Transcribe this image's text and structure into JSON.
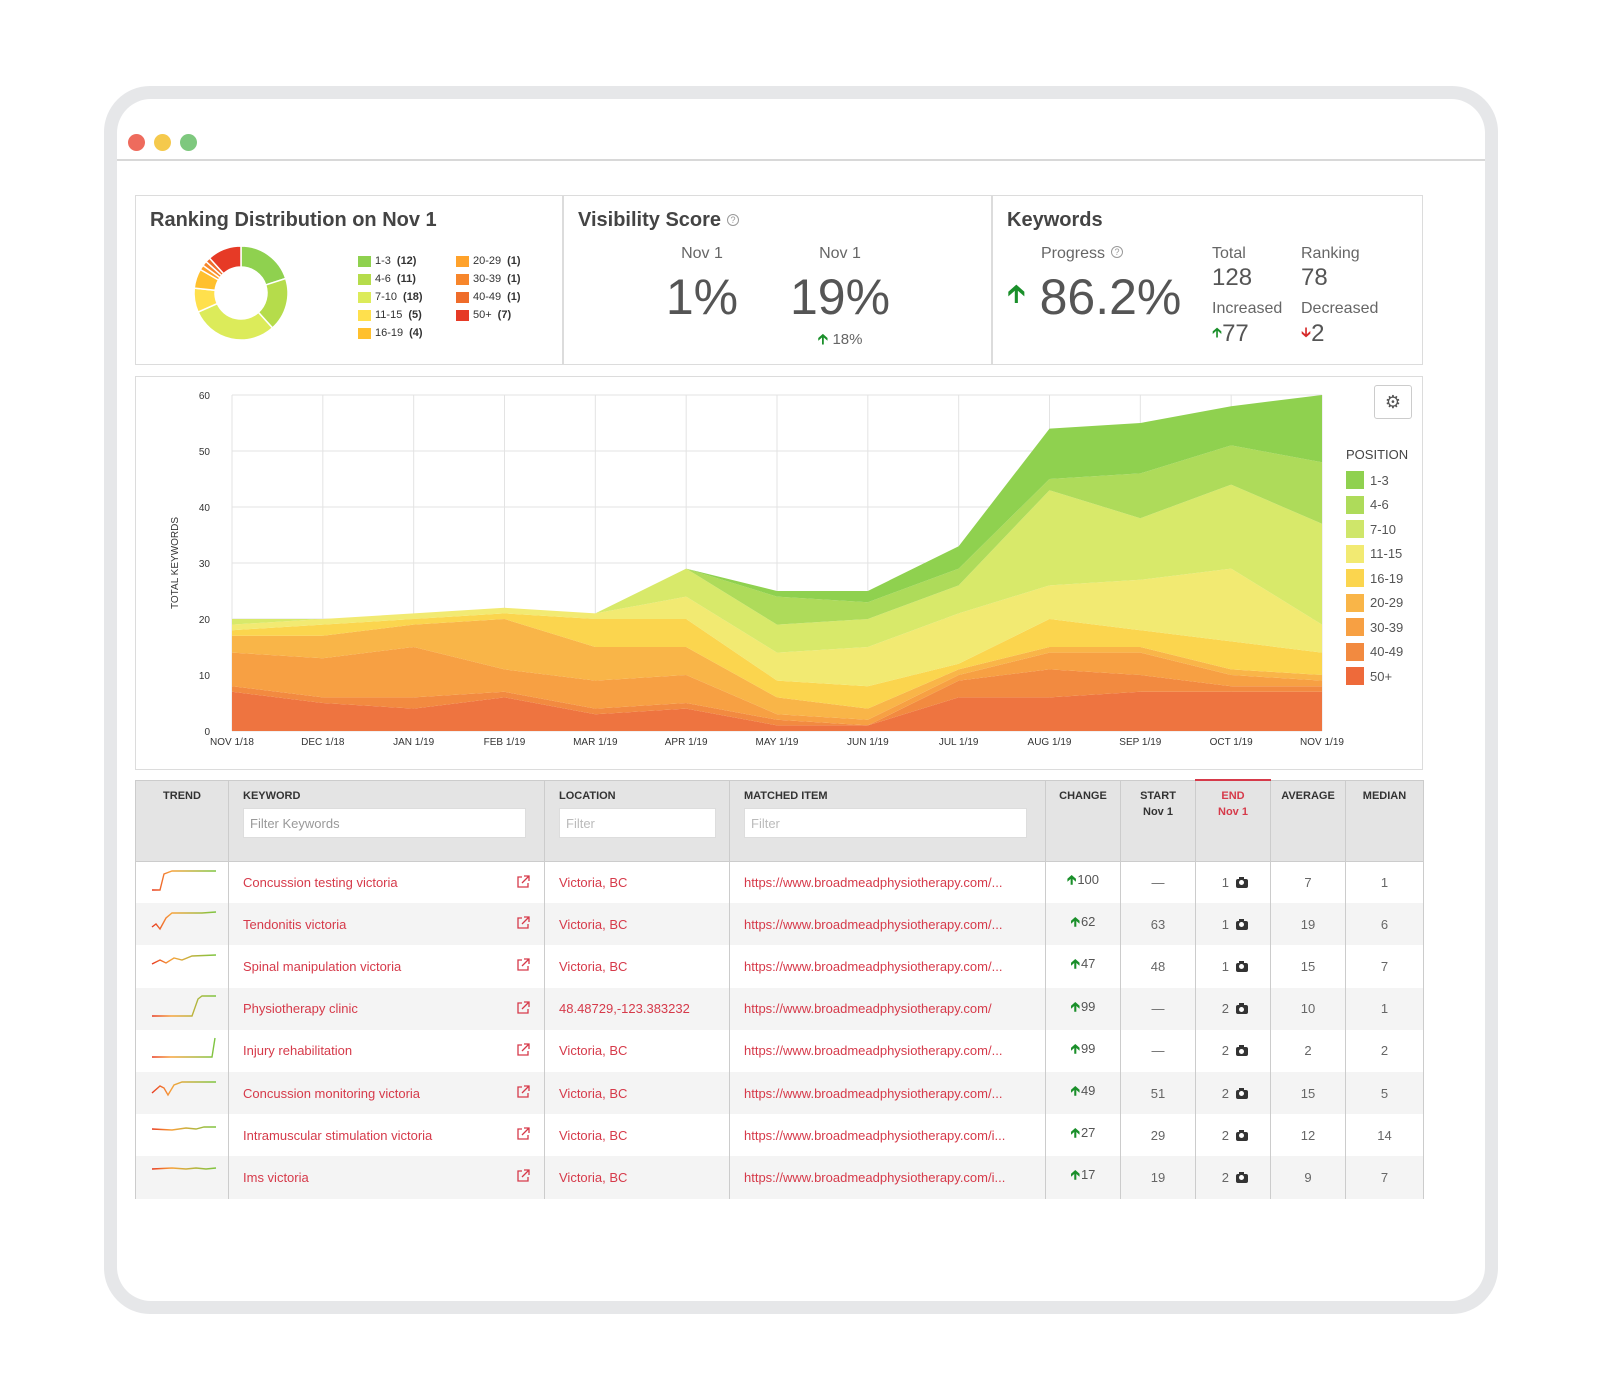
{
  "window": {
    "dot_colors": [
      "#ee6b5d",
      "#f5c94c",
      "#7ec87e"
    ]
  },
  "ranking": {
    "title": "Ranking Distribution on Nov 1",
    "legend": [
      {
        "label": "1-3",
        "count": "(12)",
        "value": 12,
        "color": "#8fd14f"
      },
      {
        "label": "4-6",
        "count": "(11)",
        "value": 11,
        "color": "#b5dc4b"
      },
      {
        "label": "7-10",
        "count": "(18)",
        "value": 18,
        "color": "#dceb5a"
      },
      {
        "label": "11-15",
        "count": "(5)",
        "value": 5,
        "color": "#ffe04d"
      },
      {
        "label": "16-19",
        "count": "(4)",
        "value": 4,
        "color": "#ffc02e"
      },
      {
        "label": "20-29",
        "count": "(1)",
        "value": 1,
        "color": "#ffa22b"
      },
      {
        "label": "30-39",
        "count": "(1)",
        "value": 1,
        "color": "#f7862b"
      },
      {
        "label": "40-49",
        "count": "(1)",
        "value": 1,
        "color": "#ef6c2a"
      },
      {
        "label": "50+",
        "count": "(7)",
        "value": 7,
        "color": "#e63a26"
      }
    ]
  },
  "visibility": {
    "title": "Visibility Score",
    "help": "?",
    "left_label": "Nov 1",
    "left_value": "1%",
    "right_label": "Nov 1",
    "right_value": "19%",
    "right_change": "18%"
  },
  "keywords": {
    "title": "Keywords",
    "progress_label": "Progress",
    "help": "?",
    "progress_value": "86.2%",
    "total_label": "Total",
    "total_value": "128",
    "ranking_label": "Ranking",
    "ranking_value": "78",
    "increased_label": "Increased",
    "increased_value": "77",
    "decreased_label": "Decreased",
    "decreased_value": "2"
  },
  "chart_data": {
    "type": "area",
    "stacked": true,
    "title": "",
    "ylabel": "TOTAL KEYWORDS",
    "xlabel": "",
    "ylim": [
      0,
      60
    ],
    "yticks": [
      0,
      10,
      20,
      30,
      40,
      50,
      60
    ],
    "categories": [
      "NOV 1/18",
      "DEC 1/18",
      "JAN 1/19",
      "FEB 1/19",
      "MAR 1/19",
      "APR 1/19",
      "MAY 1/19",
      "JUN 1/19",
      "JUL 1/19",
      "AUG 1/19",
      "SEP 1/19",
      "OCT 1/19",
      "NOV 1/19"
    ],
    "legend_title": "POSITION",
    "legend_position": "right",
    "series": [
      {
        "name": "50+",
        "color": "#ee7440",
        "values": [
          7,
          5,
          4,
          6,
          3,
          4,
          1,
          1,
          6,
          6,
          7,
          7,
          7
        ]
      },
      {
        "name": "40-49",
        "color": "#f28a40",
        "values": [
          1,
          1,
          2,
          1,
          1,
          1,
          1,
          0,
          3,
          5,
          3,
          1,
          1
        ]
      },
      {
        "name": "30-39",
        "color": "#f7a043",
        "values": [
          6,
          7,
          9,
          4,
          5,
          5,
          1,
          1,
          1,
          3,
          4,
          2,
          1
        ]
      },
      {
        "name": "20-29",
        "color": "#f9b548",
        "values": [
          3,
          4,
          4,
          9,
          6,
          5,
          3,
          2,
          1,
          1,
          1,
          1,
          1
        ]
      },
      {
        "name": "16-19",
        "color": "#fbd54e",
        "values": [
          1,
          2,
          1,
          1,
          5,
          5,
          3,
          4,
          1,
          5,
          3,
          5,
          4
        ]
      },
      {
        "name": "11-15",
        "color": "#f2ea72",
        "values": [
          1,
          1,
          1,
          1,
          1,
          4,
          5,
          7,
          9,
          6,
          9,
          13,
          5
        ]
      },
      {
        "name": "7-10",
        "color": "#d8e96a",
        "values": [
          1,
          0,
          0,
          0,
          0,
          5,
          5,
          5,
          5,
          17,
          11,
          15,
          18
        ]
      },
      {
        "name": "4-6",
        "color": "#aedb5a",
        "values": [
          0,
          0,
          0,
          0,
          0,
          0,
          5,
          3,
          3,
          2,
          8,
          7,
          11
        ]
      },
      {
        "name": "1-3",
        "color": "#8fd14f",
        "values": [
          0,
          0,
          0,
          0,
          0,
          0,
          1,
          2,
          4,
          9,
          9,
          7,
          12
        ]
      }
    ],
    "legend_items": [
      "1-3",
      "4-6",
      "7-10",
      "11-15",
      "16-19",
      "20-29",
      "30-39",
      "40-49",
      "50+"
    ],
    "legend_colors": [
      "#8fd14f",
      "#aedb5a",
      "#cfe66a",
      "#f2ea72",
      "#fbd54e",
      "#f9b548",
      "#f7a043",
      "#f28a40",
      "#ee6a3a"
    ]
  },
  "table": {
    "headers": {
      "trend": "TREND",
      "keyword": "KEYWORD",
      "keyword_filter": "Filter Keywords",
      "location": "LOCATION",
      "location_filter": "Filter",
      "matched": "MATCHED ITEM",
      "matched_filter": "Filter",
      "change": "CHANGE",
      "start": "START",
      "start_sub": "Nov 1",
      "end": "END",
      "end_sub": "Nov 1",
      "average": "AVERAGE",
      "median": "MEDIAN"
    },
    "rows": [
      {
        "keyword": "Concussion testing victoria",
        "location": "Victoria, BC",
        "url": "https://www.broadmeadphysiotherapy.com/...",
        "change": "100",
        "start": "—",
        "end": "1",
        "average": "7",
        "median": "1",
        "trend": [
          [
            0,
            22
          ],
          [
            8,
            22
          ],
          [
            12,
            6
          ],
          [
            20,
            3
          ],
          [
            64,
            3
          ]
        ]
      },
      {
        "keyword": "Tendonitis victoria",
        "location": "Victoria, BC",
        "url": "https://www.broadmeadphysiotherapy.com/...",
        "change": "62",
        "start": "63",
        "end": "1",
        "average": "19",
        "median": "6",
        "trend": [
          [
            0,
            17
          ],
          [
            4,
            14
          ],
          [
            8,
            19
          ],
          [
            14,
            8
          ],
          [
            20,
            3
          ],
          [
            50,
            3
          ],
          [
            64,
            2
          ]
        ]
      },
      {
        "keyword": "Spinal manipulation victoria",
        "location": "Victoria, BC",
        "url": "https://www.broadmeadphysiotherapy.com/...",
        "change": "47",
        "start": "48",
        "end": "1",
        "average": "15",
        "median": "7",
        "trend": [
          [
            0,
            12
          ],
          [
            8,
            8
          ],
          [
            14,
            11
          ],
          [
            22,
            6
          ],
          [
            30,
            8
          ],
          [
            40,
            4
          ],
          [
            64,
            3
          ]
        ]
      },
      {
        "keyword": "Physiotherapy clinic",
        "location": "48.48729,-123.383232",
        "url": "https://www.broadmeadphysiotherapy.com/",
        "change": "99",
        "start": "—",
        "end": "2",
        "average": "10",
        "median": "1",
        "trend": [
          [
            0,
            22
          ],
          [
            40,
            22
          ],
          [
            46,
            5
          ],
          [
            50,
            2
          ],
          [
            64,
            2
          ]
        ]
      },
      {
        "keyword": "Injury rehabilitation",
        "location": "Victoria, BC",
        "url": "https://www.broadmeadphysiotherapy.com/...",
        "change": "99",
        "start": "—",
        "end": "2",
        "average": "2",
        "median": "2",
        "trend": [
          [
            0,
            21
          ],
          [
            60,
            21
          ],
          [
            63,
            2
          ]
        ]
      },
      {
        "keyword": "Concussion monitoring victoria",
        "location": "Victoria, BC",
        "url": "https://www.broadmeadphysiotherapy.com/...",
        "change": "49",
        "start": "51",
        "end": "2",
        "average": "15",
        "median": "5",
        "trend": [
          [
            0,
            14
          ],
          [
            8,
            7
          ],
          [
            12,
            9
          ],
          [
            16,
            16
          ],
          [
            22,
            6
          ],
          [
            30,
            3
          ],
          [
            64,
            3
          ]
        ]
      },
      {
        "keyword": "Intramuscular stimulation victoria",
        "location": "Victoria, BC",
        "url": "https://www.broadmeadphysiotherapy.com/i...",
        "change": "27",
        "start": "29",
        "end": "2",
        "average": "12",
        "median": "14",
        "trend": [
          [
            0,
            8
          ],
          [
            20,
            9
          ],
          [
            34,
            7
          ],
          [
            44,
            8
          ],
          [
            52,
            6
          ],
          [
            64,
            6
          ]
        ]
      },
      {
        "keyword": "Ims victoria",
        "location": "Victoria, BC",
        "url": "https://www.broadmeadphysiotherapy.com/i...",
        "change": "17",
        "start": "19",
        "end": "2",
        "average": "9",
        "median": "7",
        "trend": [
          [
            0,
            6
          ],
          [
            20,
            5
          ],
          [
            34,
            6
          ],
          [
            44,
            5
          ],
          [
            54,
            6
          ],
          [
            64,
            5
          ]
        ]
      }
    ]
  }
}
